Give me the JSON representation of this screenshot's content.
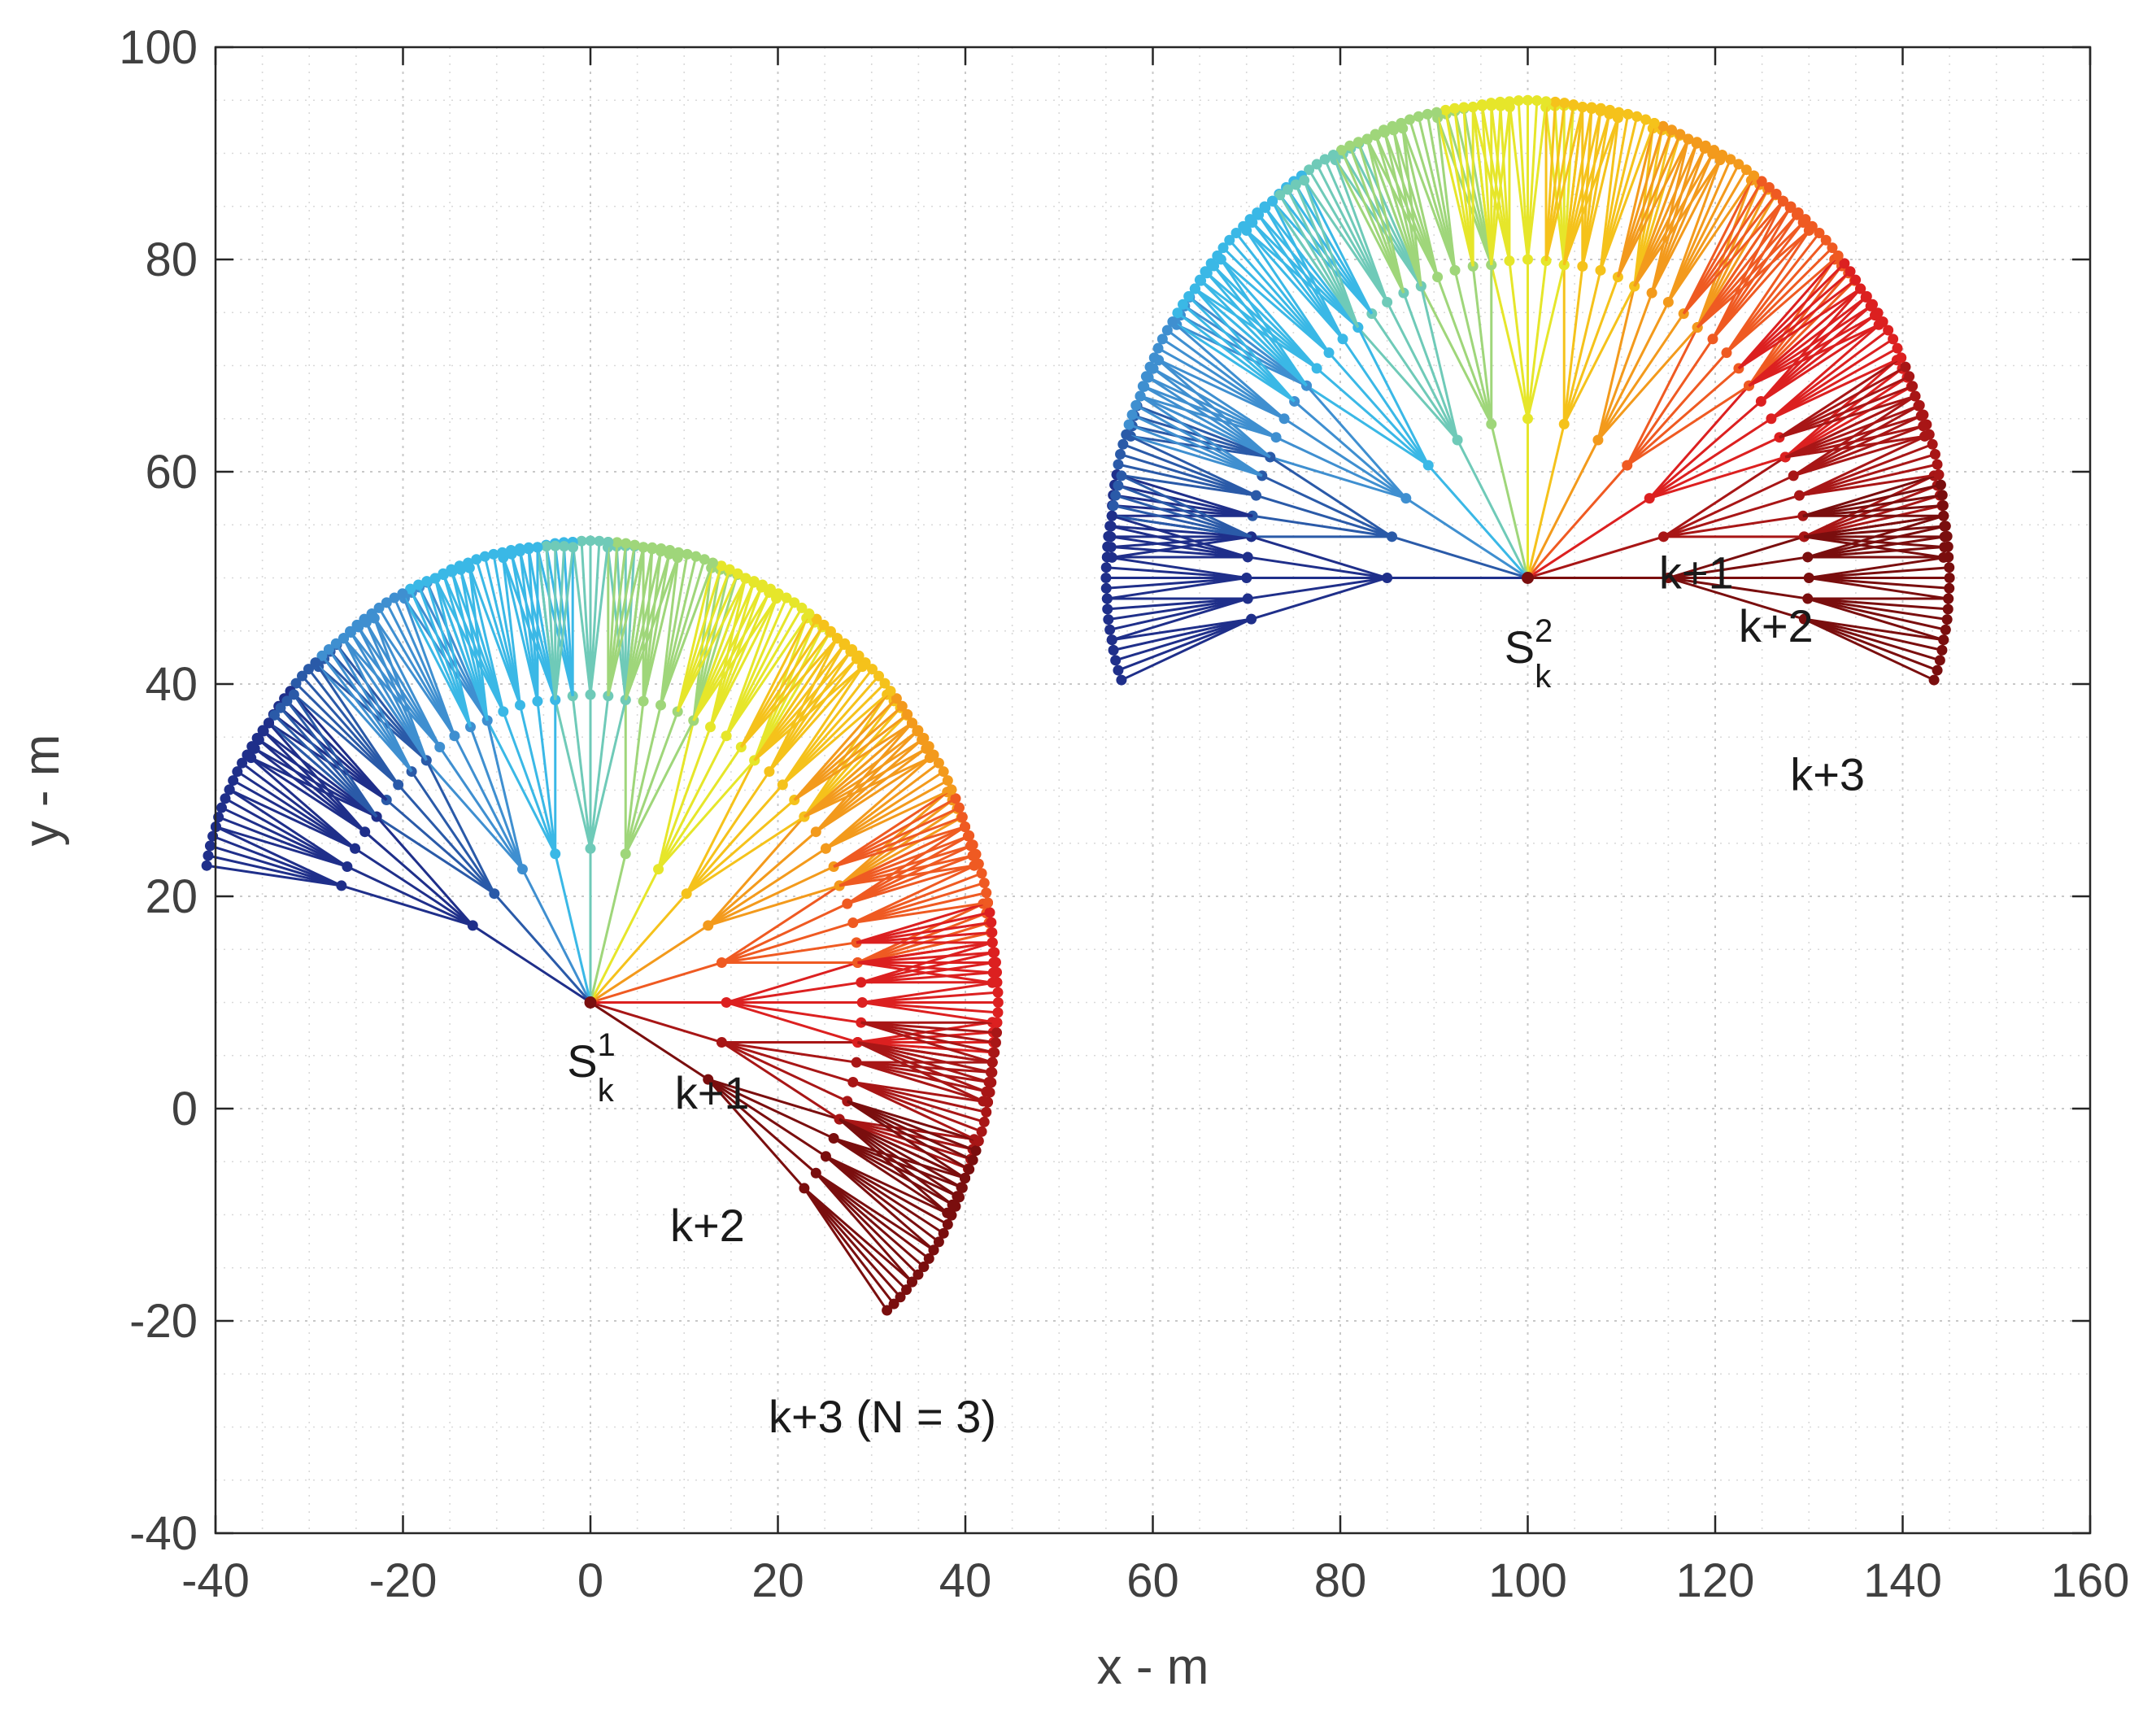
{
  "chart_data": {
    "type": "line",
    "title": "",
    "xlabel": "x - m",
    "ylabel": "y - m",
    "xlim": [
      -40,
      160
    ],
    "ylim": [
      -40,
      100
    ],
    "xticks": [
      -40,
      -20,
      0,
      20,
      40,
      60,
      80,
      100,
      120,
      140,
      160
    ],
    "yticks": [
      -40,
      -20,
      0,
      20,
      40,
      60,
      80,
      100
    ],
    "xtick_labels": [
      "-40",
      "-20",
      "0",
      "20",
      "40",
      "60",
      "80",
      "100",
      "120",
      "140",
      "160"
    ],
    "ytick_labels": [
      "-40",
      "-20",
      "0",
      "20",
      "40",
      "60",
      "80",
      "100"
    ],
    "grid": "major and minor, dotted",
    "colormap": [
      "#1f2f8a",
      "#2a5aa8",
      "#3f8fd0",
      "#3ab8e6",
      "#6fcab8",
      "#9fd67a",
      "#e6e62a",
      "#f5c21b",
      "#f39a1c",
      "#ef5a22",
      "#dc2020",
      "#a81616",
      "#7a0e0e"
    ],
    "trees": [
      {
        "name": "tree-1",
        "root": [
          0,
          10
        ],
        "branch_length": 14.5,
        "base_angle_deg": -30,
        "level_spreads_deg": [
          180,
          30,
          15
        ],
        "direction_count": 13,
        "depth": 3
      },
      {
        "name": "tree-2",
        "root": [
          100,
          50
        ],
        "branch_length": 15,
        "base_angle_deg": 0,
        "level_spreads_deg": [
          180,
          30,
          15
        ],
        "direction_count": 13,
        "depth": 3
      }
    ],
    "annotations": [
      {
        "name": "s1-label",
        "text": "S",
        "sup": "1",
        "sub": "k",
        "x": -2.5,
        "y": 3
      },
      {
        "name": "tree1-k1-label",
        "text": "k+1",
        "x": 9,
        "y": 0
      },
      {
        "name": "tree1-k2-label",
        "text": "k+2",
        "x": 8.5,
        "y": -12.5
      },
      {
        "name": "tree1-k3-label",
        "text": "k+3 (N = 3)",
        "x": 19,
        "y": -30.5
      },
      {
        "name": "s2-label",
        "text": "S",
        "sup": "2",
        "sub": "k",
        "x": 97.5,
        "y": 42
      },
      {
        "name": "tree2-k1-label",
        "text": "k+1",
        "x": 114,
        "y": 49
      },
      {
        "name": "tree2-k2-label",
        "text": "k+2",
        "x": 122.5,
        "y": 44
      },
      {
        "name": "tree2-k3-label",
        "text": "k+3",
        "x": 128,
        "y": 30
      }
    ]
  }
}
